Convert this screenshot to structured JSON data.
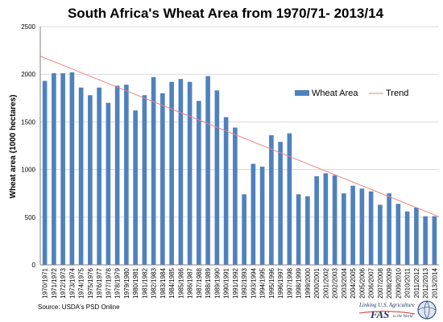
{
  "chart_data": {
    "type": "bar",
    "title": "South Africa's Wheat Area from 1970/71- 2013/14",
    "ylabel": "Wheat area (1000 hectares)",
    "xlabel": "",
    "ylim": [
      0,
      2500
    ],
    "yticks": [
      "0",
      "500",
      "1000",
      "1500",
      "2000",
      "2500"
    ],
    "categories": [
      "1970/1971",
      "1971/1972",
      "1972/1973",
      "1973/1974",
      "1974/1975",
      "1975/1976",
      "1976/1977",
      "1977/1978",
      "1978/1979",
      "1979/1980",
      "1980/1981",
      "1981/1982",
      "1982/1983",
      "1983/1984",
      "1984/1985",
      "1985/1986",
      "1986/1987",
      "1987/1988",
      "1988/1989",
      "1989/1990",
      "1990/1991",
      "1991/1992",
      "1992/1993",
      "1993/1994",
      "1994/1995",
      "1995/1996",
      "1996/1997",
      "1997/1998",
      "1998/1999",
      "1999/2000",
      "2000/2001",
      "2001/2002",
      "2002/2003",
      "2003/2004",
      "2004/2005",
      "2005/2006",
      "2006/2007",
      "2007/2008",
      "2008/2009",
      "2009/2010",
      "2010/2011",
      "2011/2012",
      "2012/2013",
      "2013/2014"
    ],
    "series": [
      {
        "name": "Wheat Area",
        "color": "#4f81bd",
        "values": [
          1930,
          2010,
          2010,
          2020,
          1860,
          1780,
          1860,
          1700,
          1880,
          1890,
          1620,
          1780,
          1970,
          1800,
          1920,
          1950,
          1920,
          1720,
          1980,
          1830,
          1550,
          1440,
          740,
          1060,
          1030,
          1360,
          1290,
          1380,
          740,
          720,
          930,
          960,
          940,
          750,
          830,
          800,
          770,
          630,
          750,
          640,
          560,
          600,
          510,
          510
        ]
      },
      {
        "name": "Trend",
        "color": "#f08080",
        "type": "line",
        "start": 2190,
        "end": 505
      }
    ],
    "legend": "right",
    "grid": true
  },
  "source_text": "Source:  USDA's PSD Online",
  "logo": {
    "tagline": "Linking U.S. Agriculture",
    "fas": "FAS",
    "small": "to the World"
  }
}
